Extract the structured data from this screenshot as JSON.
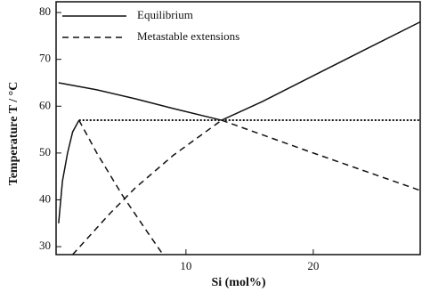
{
  "chart_data": {
    "type": "line",
    "x_label": "Si   (mol%)",
    "y_label": "Temperature  T / °C",
    "xlim": [
      -0.2,
      28.4
    ],
    "ylim": [
      28.3,
      82.3
    ],
    "xticks": [
      10,
      20
    ],
    "yticks": [
      30,
      40,
      50,
      60,
      70,
      80
    ],
    "legend": [
      {
        "label": "Equilibrium",
        "style": "solid"
      },
      {
        "label": "Metastable extensions",
        "style": "dashed"
      }
    ],
    "color": "#111111",
    "curves": [
      {
        "style": "solid",
        "x": [
          0,
          3,
          6,
          9,
          12.8
        ],
        "y": [
          65,
          63.5,
          61.6,
          59.5,
          57
        ]
      },
      {
        "style": "solid",
        "x": [
          12.8,
          16,
          20,
          24,
          28.4
        ],
        "y": [
          57,
          61,
          66.5,
          72,
          78
        ]
      },
      {
        "style": "solid",
        "x": [
          0,
          0.3,
          0.7,
          1.1,
          1.6
        ],
        "y": [
          35,
          44,
          50,
          54.5,
          57
        ]
      },
      {
        "style": "dotted",
        "x": [
          1.6,
          28.4
        ],
        "y": [
          57,
          57
        ]
      },
      {
        "style": "dashed",
        "x": [
          1.6,
          3,
          5,
          7,
          8.2
        ],
        "y": [
          57,
          50,
          41,
          33,
          28.3
        ]
      },
      {
        "style": "dashed",
        "x": [
          12.8,
          20,
          28.4
        ],
        "y": [
          57,
          50,
          42
        ]
      },
      {
        "style": "dashed",
        "x": [
          1.1,
          2,
          4,
          6,
          9,
          12.8
        ],
        "y": [
          28.3,
          31,
          37,
          42.5,
          49.5,
          57
        ]
      }
    ]
  }
}
